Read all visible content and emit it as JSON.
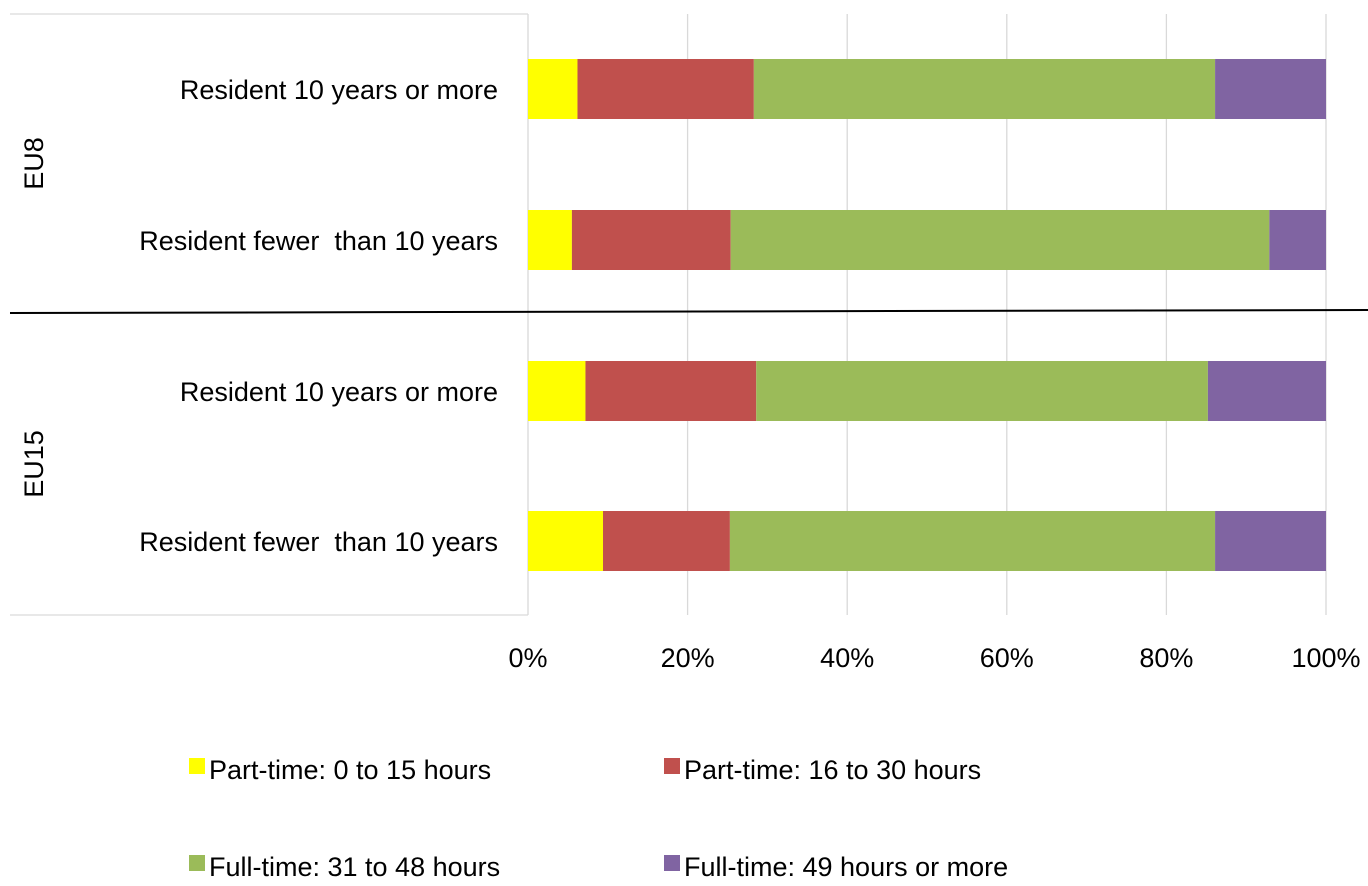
{
  "chart_data": {
    "type": "bar",
    "orientation": "horizontal",
    "stacked": "percent",
    "title": "",
    "xlabel": "",
    "ylabel": "",
    "xlim": [
      0,
      100
    ],
    "x_ticks": [
      "0%",
      "20%",
      "40%",
      "60%",
      "80%",
      "100%"
    ],
    "grid": "vertical",
    "legend_position": "bottom",
    "groups": [
      {
        "name": "EU8",
        "categories": [
          "Resident 10 years or more",
          "Resident fewer  than 10 years"
        ]
      },
      {
        "name": "EU15",
        "categories": [
          "Resident 10 years or more",
          "Resident fewer  than 10 years"
        ]
      }
    ],
    "series": [
      {
        "name": "Part-time: 0 to 15 hours",
        "color": "#FFFF00",
        "values": [
          6.2,
          5.5,
          7.2,
          9.4
        ]
      },
      {
        "name": "Part-time: 16 to 30 hours",
        "color": "#C0504D",
        "values": [
          22.1,
          19.9,
          21.4,
          15.9
        ]
      },
      {
        "name": "Full-time: 31 to 48 hours",
        "color": "#9BBB59",
        "values": [
          57.8,
          67.5,
          56.6,
          60.8
        ]
      },
      {
        "name": "Full-time: 49 hours or more",
        "color": "#8064A2",
        "values": [
          13.9,
          7.1,
          14.8,
          13.9
        ]
      }
    ]
  }
}
